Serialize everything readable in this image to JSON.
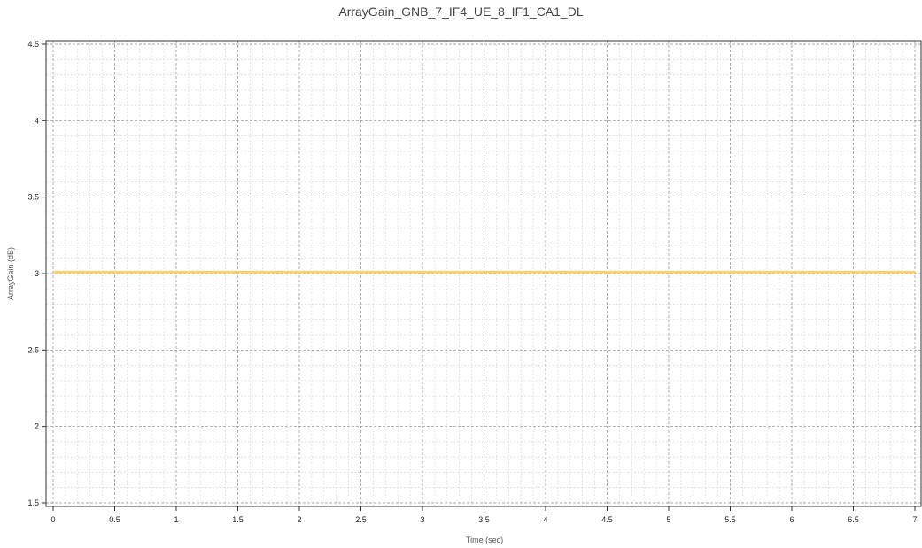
{
  "chart_data": {
    "type": "line",
    "title": "ArrayGain_GNB_7_IF4_UE_8_IF1_CA1_DL",
    "xlabel": "Time (sec)",
    "ylabel": "ArrayGain (dB)",
    "xlim": [
      0,
      7
    ],
    "ylim": [
      1.5,
      4.5
    ],
    "x_ticks": [
      0,
      0.5,
      1,
      1.5,
      2,
      2.5,
      3,
      3.5,
      4,
      4.5,
      5,
      5.5,
      6,
      6.5,
      7
    ],
    "x_tick_labels": [
      "0",
      "0.5",
      "1",
      "1.5",
      "2",
      "2.5",
      "3",
      "3.5",
      "4",
      "4.5",
      "5",
      "5.5",
      "6",
      "6.5",
      "7"
    ],
    "y_ticks": [
      1.5,
      2,
      2.5,
      3,
      3.5,
      4,
      4.5
    ],
    "y_tick_labels": [
      "1.5",
      "2",
      "2.5",
      "3",
      "3.5",
      "4",
      "4.5"
    ],
    "grid": true,
    "minor_grid": true,
    "legend": "none",
    "series": [
      {
        "x": [
          0,
          7
        ],
        "y": [
          3.01,
          3.01
        ],
        "color": "#f5d27a"
      }
    ]
  }
}
